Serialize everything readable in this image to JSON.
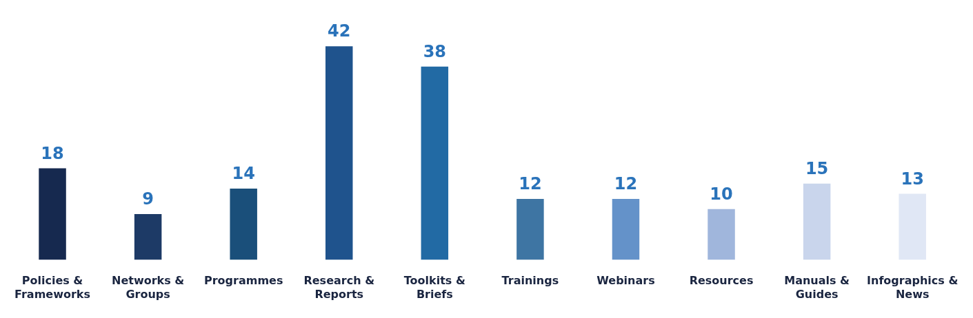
{
  "chart_data": {
    "type": "bar",
    "categories": [
      "Policies & Frameworks",
      "Networks & Groups",
      "Programmes",
      "Research & Reports",
      "Toolkits & Briefs",
      "Trainings",
      "Webinars",
      "Resources",
      "Manuals & Guides",
      "Infographics & News"
    ],
    "values": [
      18,
      9,
      14,
      42,
      38,
      12,
      12,
      10,
      15,
      13
    ],
    "colors": [
      "#16294f",
      "#1d3a66",
      "#1a4f7a",
      "#1f538d",
      "#226aa4",
      "#3e75a3",
      "#6492c9",
      "#a0b6dc",
      "#c9d5ec",
      "#e0e7f5"
    ],
    "data_labels": true,
    "grid": false,
    "legend": false
  }
}
